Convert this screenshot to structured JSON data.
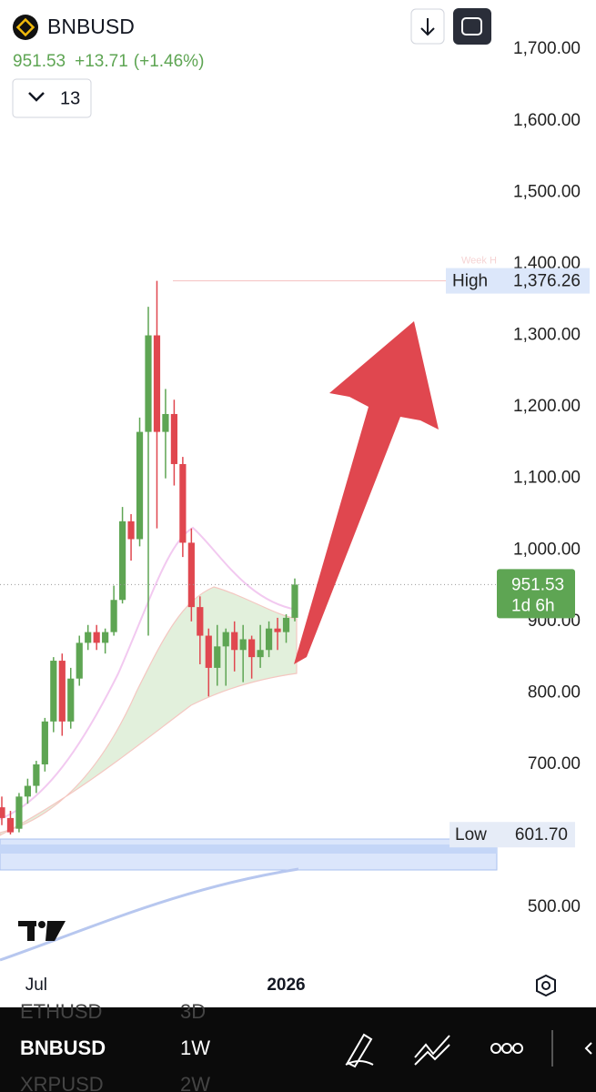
{
  "header": {
    "symbol": "BNBUSD",
    "price": "951.53",
    "change": "+13.71",
    "change_pct": "(+1.46%)",
    "indicator_count": "13"
  },
  "chart_data": {
    "type": "candlestick",
    "categories": [
      null,
      null,
      null,
      null,
      "Jul",
      null,
      null,
      null,
      null,
      null,
      null,
      null,
      null,
      null,
      null,
      null,
      null,
      null,
      null,
      null,
      null,
      null,
      null,
      null,
      null,
      null,
      null,
      null,
      null,
      null,
      null,
      null,
      null,
      "2026",
      null
    ],
    "open": [
      640,
      625,
      610,
      655,
      670,
      700,
      760,
      845,
      760,
      820,
      870,
      885,
      870,
      885,
      930,
      1040,
      1015,
      1165,
      1300,
      1165,
      1190,
      1120,
      1010,
      920,
      880,
      835,
      865,
      885,
      860,
      875,
      850,
      860,
      890,
      885,
      905
    ],
    "high": [
      655,
      635,
      660,
      680,
      705,
      765,
      850,
      855,
      835,
      880,
      895,
      895,
      890,
      950,
      1060,
      1050,
      1185,
      1340,
      1376.26,
      1225,
      1210,
      1130,
      1030,
      935,
      890,
      895,
      890,
      900,
      895,
      880,
      895,
      900,
      905,
      910,
      960
    ],
    "low": [
      615,
      602,
      605,
      645,
      660,
      690,
      745,
      740,
      750,
      810,
      860,
      860,
      855,
      880,
      925,
      985,
      1005,
      880,
      1030,
      1100,
      1090,
      990,
      900,
      840,
      795,
      810,
      810,
      830,
      815,
      820,
      835,
      850,
      860,
      870,
      900
    ],
    "close": [
      625,
      605,
      655,
      670,
      700,
      760,
      845,
      760,
      820,
      870,
      885,
      870,
      885,
      930,
      1040,
      1015,
      1165,
      1300,
      1165,
      1190,
      1120,
      1010,
      920,
      880,
      835,
      865,
      885,
      860,
      875,
      850,
      860,
      890,
      885,
      905,
      951.53
    ],
    "up_color": "#5ea553",
    "down_color": "#e0474f",
    "ylim": [
      420,
      1769
    ],
    "yticks": [
      {
        "value": 1700,
        "label": "1,700.00"
      },
      {
        "value": 1600,
        "label": "1,600.00"
      },
      {
        "value": 1500,
        "label": "1,500.00"
      },
      {
        "value": 1400,
        "label": "1,400.00"
      },
      {
        "value": 1300,
        "label": "1,300.00"
      },
      {
        "value": 1200,
        "label": "1,200.00"
      },
      {
        "value": 1100,
        "label": "1,100.00"
      },
      {
        "value": 1000,
        "label": "1,000.00"
      },
      {
        "value": 900,
        "label": "900.00"
      },
      {
        "value": 800,
        "label": "800.00"
      },
      {
        "value": 700,
        "label": "700.00"
      },
      {
        "value": 500,
        "label": "500.00"
      }
    ],
    "countdown": "1d 6h",
    "high_marker": {
      "label": "High",
      "value": 1376.26,
      "value_label": "1,376.26"
    },
    "low_marker": {
      "label": "Low",
      "value": 601.7,
      "value_label": "601.70"
    },
    "line_annotation": "Week H"
  },
  "bottom_bar": {
    "symbols": [
      {
        "symbol": "ETHUSD",
        "interval": "3D"
      },
      {
        "symbol": "BNBUSD",
        "interval": "1W"
      },
      {
        "symbol": "XRPUSD",
        "interval": "2W"
      }
    ]
  }
}
